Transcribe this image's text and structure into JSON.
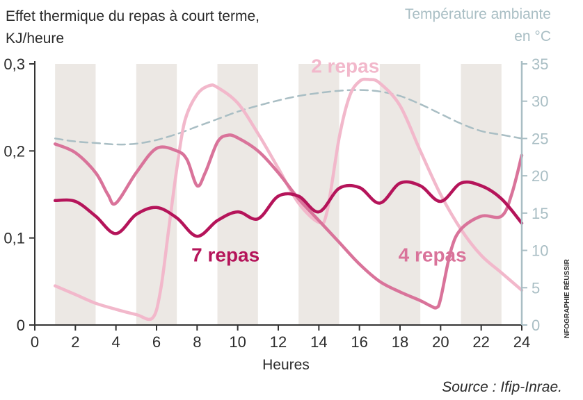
{
  "chart_data": {
    "type": "line",
    "title_left": "Effet thermique du repas à court terme,",
    "title_left_line2": "KJ/heure",
    "title_right": "Température ambiante",
    "title_right_line2": "en °C",
    "xlabel": "Heures",
    "credit": "NFOGRAPHIE RÉUSSIR",
    "source": "Source : Ifip-Inrae.",
    "x_ticks": [
      "0",
      "2",
      "4",
      "6",
      "8",
      "10",
      "12",
      "14",
      "16",
      "18",
      "20",
      "22",
      "24"
    ],
    "y_ticks": [
      "0",
      "0,1",
      "0,2",
      "0,3"
    ],
    "y2_ticks": [
      "0",
      "5",
      "10",
      "15",
      "20",
      "25",
      "30",
      "35"
    ],
    "xlim": [
      0,
      24
    ],
    "ylim": [
      0,
      0.3
    ],
    "y2lim": [
      0,
      35
    ],
    "shaded_bands": [
      [
        1,
        3
      ],
      [
        5,
        7
      ],
      [
        9,
        11
      ],
      [
        13,
        15
      ],
      [
        17,
        19
      ],
      [
        21,
        23
      ]
    ],
    "colors": {
      "band": "#ece8e4",
      "axis_left": "#333333",
      "axis_right": "#a9bec4",
      "series_7": "#b5145a",
      "series_4": "#d9739a",
      "series_2": "#f2b8cb",
      "temperature": "#a9bec4"
    },
    "series": [
      {
        "name": "2 repas",
        "key": "series_2",
        "axis": "left",
        "x": [
          1,
          2,
          3,
          4,
          5,
          5.8,
          6.2,
          6.6,
          7,
          7.4,
          8,
          8.6,
          9,
          10,
          11,
          12,
          13,
          14,
          14.4,
          15,
          15.5,
          16,
          16.5,
          17,
          18,
          19,
          20,
          21,
          22,
          23,
          24
        ],
        "y": [
          0.045,
          0.035,
          0.025,
          0.018,
          0.012,
          0.008,
          0.04,
          0.11,
          0.18,
          0.235,
          0.265,
          0.275,
          0.273,
          0.255,
          0.22,
          0.18,
          0.14,
          0.118,
          0.13,
          0.215,
          0.262,
          0.28,
          0.282,
          0.278,
          0.252,
          0.2,
          0.15,
          0.11,
          0.08,
          0.06,
          0.04
        ]
      },
      {
        "name": "4 repas",
        "key": "series_4",
        "axis": "left",
        "x": [
          1,
          2,
          3,
          3.6,
          4,
          5,
          6,
          7,
          7.5,
          8,
          8.4,
          9,
          9.5,
          10,
          11,
          12,
          13,
          14,
          15,
          16,
          17,
          18,
          19,
          19.5,
          19.8,
          20,
          20.5,
          21,
          22,
          23,
          23.5,
          24
        ],
        "y": [
          0.208,
          0.198,
          0.175,
          0.15,
          0.14,
          0.175,
          0.203,
          0.2,
          0.19,
          0.16,
          0.175,
          0.21,
          0.218,
          0.215,
          0.2,
          0.175,
          0.145,
          0.12,
          0.095,
          0.07,
          0.05,
          0.038,
          0.028,
          0.022,
          0.02,
          0.03,
          0.085,
          0.11,
          0.125,
          0.125,
          0.15,
          0.195
        ]
      },
      {
        "name": "7 repas",
        "key": "series_7",
        "axis": "left",
        "x": [
          1,
          2,
          3,
          4,
          5,
          6,
          7,
          8,
          9,
          10,
          11,
          12,
          13,
          14,
          15,
          16,
          17,
          18,
          19,
          20,
          21,
          22,
          23,
          24
        ],
        "y": [
          0.143,
          0.142,
          0.125,
          0.105,
          0.127,
          0.135,
          0.123,
          0.102,
          0.12,
          0.13,
          0.122,
          0.148,
          0.148,
          0.13,
          0.157,
          0.158,
          0.14,
          0.163,
          0.16,
          0.142,
          0.163,
          0.16,
          0.145,
          0.117
        ]
      },
      {
        "name": "Température ambiante",
        "key": "temperature",
        "axis": "right",
        "x": [
          1,
          2,
          3,
          4,
          5,
          6,
          7,
          8,
          9,
          10,
          11,
          12,
          13,
          14,
          15,
          16,
          17,
          18,
          19,
          20,
          21,
          22,
          23,
          24
        ],
        "y": [
          25,
          24.6,
          24.4,
          24.2,
          24.3,
          24.8,
          25.6,
          26.6,
          27.6,
          28.6,
          29.4,
          30.1,
          30.7,
          31.1,
          31.4,
          31.5,
          31.3,
          30.7,
          29.6,
          28.3,
          27,
          26,
          25.5,
          25
        ]
      }
    ],
    "labels": [
      {
        "text": "2 repas",
        "key": "series_2",
        "x": 15.3,
        "y": 0.29
      },
      {
        "text": "7 repas",
        "key": "series_7",
        "x": 9.4,
        "y": 0.073
      },
      {
        "text": "4 repas",
        "key": "series_4",
        "x": 19.6,
        "y": 0.073
      }
    ]
  }
}
